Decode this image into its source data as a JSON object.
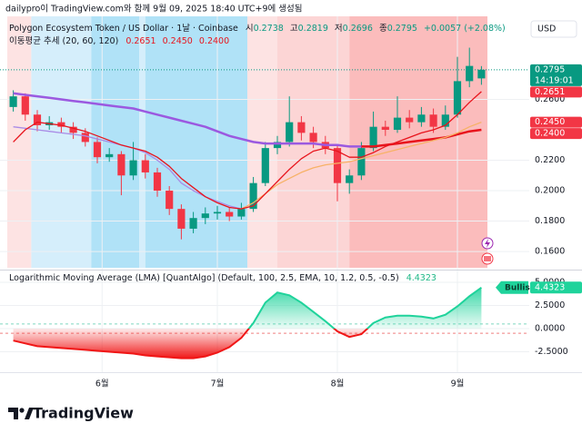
{
  "credit": "dailypro이 TradingView.com와 함께 9월 09, 2025 18:40 UTC+9에 생성됨",
  "currency": "USD",
  "branding": "TradingView",
  "chart_data": [
    {
      "type": "candlestick",
      "title": "Polygon Ecosystem Token / US Dollar · 1날 · Coinbase",
      "ohlc_labels": [
        "시",
        "고",
        "저",
        "종"
      ],
      "change_label": "+0.0057 (+2.08%)",
      "indicator_title": "이동평균 추세 (20, 60, 120)",
      "countdown": "14:19:01",
      "up_color": "#089981",
      "down_color": "#f23645",
      "xlim": [
        -0.5,
        39.5
      ],
      "ylim": [
        0.1493,
        0.3146
      ],
      "yticks": [
        {
          "value": 0.26,
          "label": "0.2600"
        },
        {
          "value": 0.22,
          "label": "0.2200"
        },
        {
          "value": 0.2,
          "label": "0.2000"
        },
        {
          "value": 0.18,
          "label": "0.1800"
        },
        {
          "value": 0.16,
          "label": "0.1600"
        }
      ],
      "grid": true,
      "zones": [
        {
          "from": -0.5,
          "to": 1.5,
          "color": "#fde3e3"
        },
        {
          "from": 1.5,
          "to": 6.5,
          "color": "#d5eefb"
        },
        {
          "from": 6.5,
          "to": 10.5,
          "color": "#b0e2f7"
        },
        {
          "from": 10.5,
          "to": 11,
          "color": "#d5eefb"
        },
        {
          "from": 11,
          "to": 19.5,
          "color": "#b0e2f7"
        },
        {
          "from": 19.5,
          "to": 22,
          "color": "#fde3e3"
        },
        {
          "from": 22,
          "to": 28,
          "color": "#fcd5d5"
        },
        {
          "from": 28,
          "to": 39.5,
          "color": "#fbbcbc"
        }
      ],
      "candles": [
        [
          0.255,
          0.266,
          0.252,
          0.262
        ],
        [
          0.262,
          0.264,
          0.246,
          0.25
        ],
        [
          0.25,
          0.253,
          0.239,
          0.243
        ],
        [
          0.243,
          0.249,
          0.24,
          0.245
        ],
        [
          0.245,
          0.248,
          0.238,
          0.242
        ],
        [
          0.242,
          0.245,
          0.234,
          0.238
        ],
        [
          0.238,
          0.241,
          0.229,
          0.232
        ],
        [
          0.232,
          0.235,
          0.218,
          0.222
        ],
        [
          0.222,
          0.228,
          0.219,
          0.224
        ],
        [
          0.224,
          0.226,
          0.197,
          0.21
        ],
        [
          0.21,
          0.232,
          0.207,
          0.22
        ],
        [
          0.22,
          0.224,
          0.208,
          0.212
        ],
        [
          0.212,
          0.215,
          0.196,
          0.2
        ],
        [
          0.2,
          0.203,
          0.184,
          0.188
        ],
        [
          0.188,
          0.191,
          0.168,
          0.175
        ],
        [
          0.175,
          0.186,
          0.172,
          0.182
        ],
        [
          0.182,
          0.189,
          0.178,
          0.185
        ],
        [
          0.185,
          0.19,
          0.181,
          0.186
        ],
        [
          0.186,
          0.189,
          0.18,
          0.183
        ],
        [
          0.183,
          0.192,
          0.181,
          0.188
        ],
        [
          0.188,
          0.209,
          0.186,
          0.205
        ],
        [
          0.205,
          0.232,
          0.203,
          0.228
        ],
        [
          0.228,
          0.236,
          0.224,
          0.232
        ],
        [
          0.232,
          0.262,
          0.229,
          0.245
        ],
        [
          0.245,
          0.249,
          0.233,
          0.238
        ],
        [
          0.238,
          0.242,
          0.228,
          0.232
        ],
        [
          0.232,
          0.236,
          0.224,
          0.228
        ],
        [
          0.228,
          0.23,
          0.193,
          0.205
        ],
        [
          0.205,
          0.214,
          0.198,
          0.21
        ],
        [
          0.21,
          0.232,
          0.207,
          0.228
        ],
        [
          0.228,
          0.252,
          0.226,
          0.242
        ],
        [
          0.242,
          0.246,
          0.236,
          0.24
        ],
        [
          0.24,
          0.262,
          0.238,
          0.248
        ],
        [
          0.248,
          0.253,
          0.241,
          0.245
        ],
        [
          0.245,
          0.255,
          0.242,
          0.25
        ],
        [
          0.25,
          0.254,
          0.238,
          0.242
        ],
        [
          0.242,
          0.256,
          0.24,
          0.25
        ],
        [
          0.25,
          0.288,
          0.248,
          0.272
        ],
        [
          0.272,
          0.294,
          0.268,
          0.282
        ],
        [
          0.2738,
          0.2819,
          0.2696,
          0.2795
        ]
      ],
      "series": [
        {
          "color": "#9b59e0",
          "width": 2.5,
          "values": [
            0.264,
            0.263,
            0.262,
            0.261,
            0.26,
            0.259,
            0.258,
            0.257,
            0.256,
            0.255,
            0.254,
            0.252,
            0.25,
            0.248,
            0.246,
            0.244,
            0.242,
            0.239,
            0.236,
            0.234,
            0.232,
            0.231,
            0.231,
            0.231,
            0.231,
            0.231,
            0.23,
            0.23,
            0.229,
            0.229,
            null,
            null,
            null,
            null,
            null,
            null,
            null,
            null,
            null,
            null
          ]
        },
        {
          "color": "#e8141c",
          "width": 2.5,
          "value_label": "0.2400",
          "values": [
            null,
            null,
            null,
            null,
            null,
            null,
            null,
            null,
            null,
            null,
            null,
            null,
            null,
            null,
            null,
            null,
            null,
            null,
            null,
            null,
            null,
            null,
            null,
            null,
            null,
            null,
            null,
            null,
            null,
            0.229,
            0.229,
            0.23,
            0.231,
            0.232,
            0.233,
            0.234,
            0.235,
            0.237,
            0.239,
            0.24
          ]
        },
        {
          "color": "#a98be6",
          "width": 1.3,
          "values": [
            0.242,
            0.241,
            0.24,
            0.239,
            0.238,
            0.237,
            0.236,
            0.234,
            0.232,
            0.23,
            0.228,
            0.225,
            0.22,
            0.214,
            0.205,
            0.2,
            0.196,
            0.193,
            0.19,
            0.188,
            null,
            null,
            null,
            null,
            null,
            null,
            null,
            null,
            null,
            null,
            null,
            null,
            null,
            null,
            null,
            null,
            null,
            null,
            null,
            null
          ]
        },
        {
          "color": "#f7b267",
          "width": 1.3,
          "value_label": "0.2450",
          "values": [
            null,
            null,
            null,
            null,
            null,
            null,
            null,
            null,
            null,
            null,
            null,
            null,
            null,
            null,
            null,
            null,
            null,
            null,
            null,
            0.188,
            0.192,
            0.198,
            0.204,
            0.208,
            0.212,
            0.215,
            0.217,
            0.218,
            0.219,
            0.221,
            0.223,
            0.225,
            0.227,
            0.229,
            0.231,
            0.233,
            0.235,
            0.238,
            0.242,
            0.245
          ]
        },
        {
          "color": "#e8141c",
          "width": 1.3,
          "value_label": "0.2651",
          "values": [
            0.232,
            0.24,
            0.245,
            0.244,
            0.243,
            0.241,
            0.239,
            0.236,
            0.233,
            0.23,
            0.228,
            0.226,
            0.222,
            0.216,
            0.208,
            0.202,
            0.196,
            0.192,
            0.189,
            0.188,
            0.19,
            0.198,
            0.206,
            0.214,
            0.221,
            0.226,
            0.228,
            0.226,
            0.222,
            0.222,
            0.225,
            0.229,
            0.232,
            0.235,
            0.238,
            0.24,
            0.243,
            0.25,
            0.258,
            0.2651
          ]
        }
      ],
      "legend_values": [
        "0.2651",
        "0.2450",
        "0.2400"
      ]
    },
    {
      "type": "area",
      "title": "Logarithmic Moving Average (LMA) [QuantAlgo] (Default, 100, 2.5, EMA, 10, 1.2, 0.5, -0.5)",
      "signal_label": "Bullish",
      "color_up": "#1fd39b",
      "color_down": "#f01616",
      "xlim": [
        -0.5,
        39.5
      ],
      "ylim": [
        -4.71,
        6.08
      ],
      "yticks": [
        {
          "value": 5,
          "label": "5.0000"
        },
        {
          "value": 2.5,
          "label": "2.5000"
        },
        {
          "value": 0,
          "label": "0.0000"
        },
        {
          "value": -2.5,
          "label": "-2.5000"
        }
      ],
      "thresholds": [
        {
          "value": 0.5,
          "color": "#7fd8c0"
        },
        {
          "value": -0.5,
          "color": "#f08080"
        }
      ],
      "xticks": [
        {
          "value": 7.4,
          "label": "6월"
        },
        {
          "value": 17.0,
          "label": "7월"
        },
        {
          "value": 27.0,
          "label": "8월"
        },
        {
          "value": 37.0,
          "label": "9월"
        }
      ],
      "values": [
        -1.3,
        -1.6,
        -1.9,
        -2.0,
        -2.1,
        -2.2,
        -2.3,
        -2.4,
        -2.5,
        -2.6,
        -2.7,
        -2.9,
        -3.0,
        -3.1,
        -3.2,
        -3.2,
        -3.0,
        -2.6,
        -2.0,
        -1.0,
        0.6,
        2.8,
        3.9,
        3.6,
        2.8,
        1.8,
        0.8,
        -0.3,
        -0.9,
        -0.6,
        0.6,
        1.2,
        1.4,
        1.4,
        1.3,
        1.1,
        1.5,
        2.4,
        3.5,
        4.4323
      ]
    }
  ]
}
